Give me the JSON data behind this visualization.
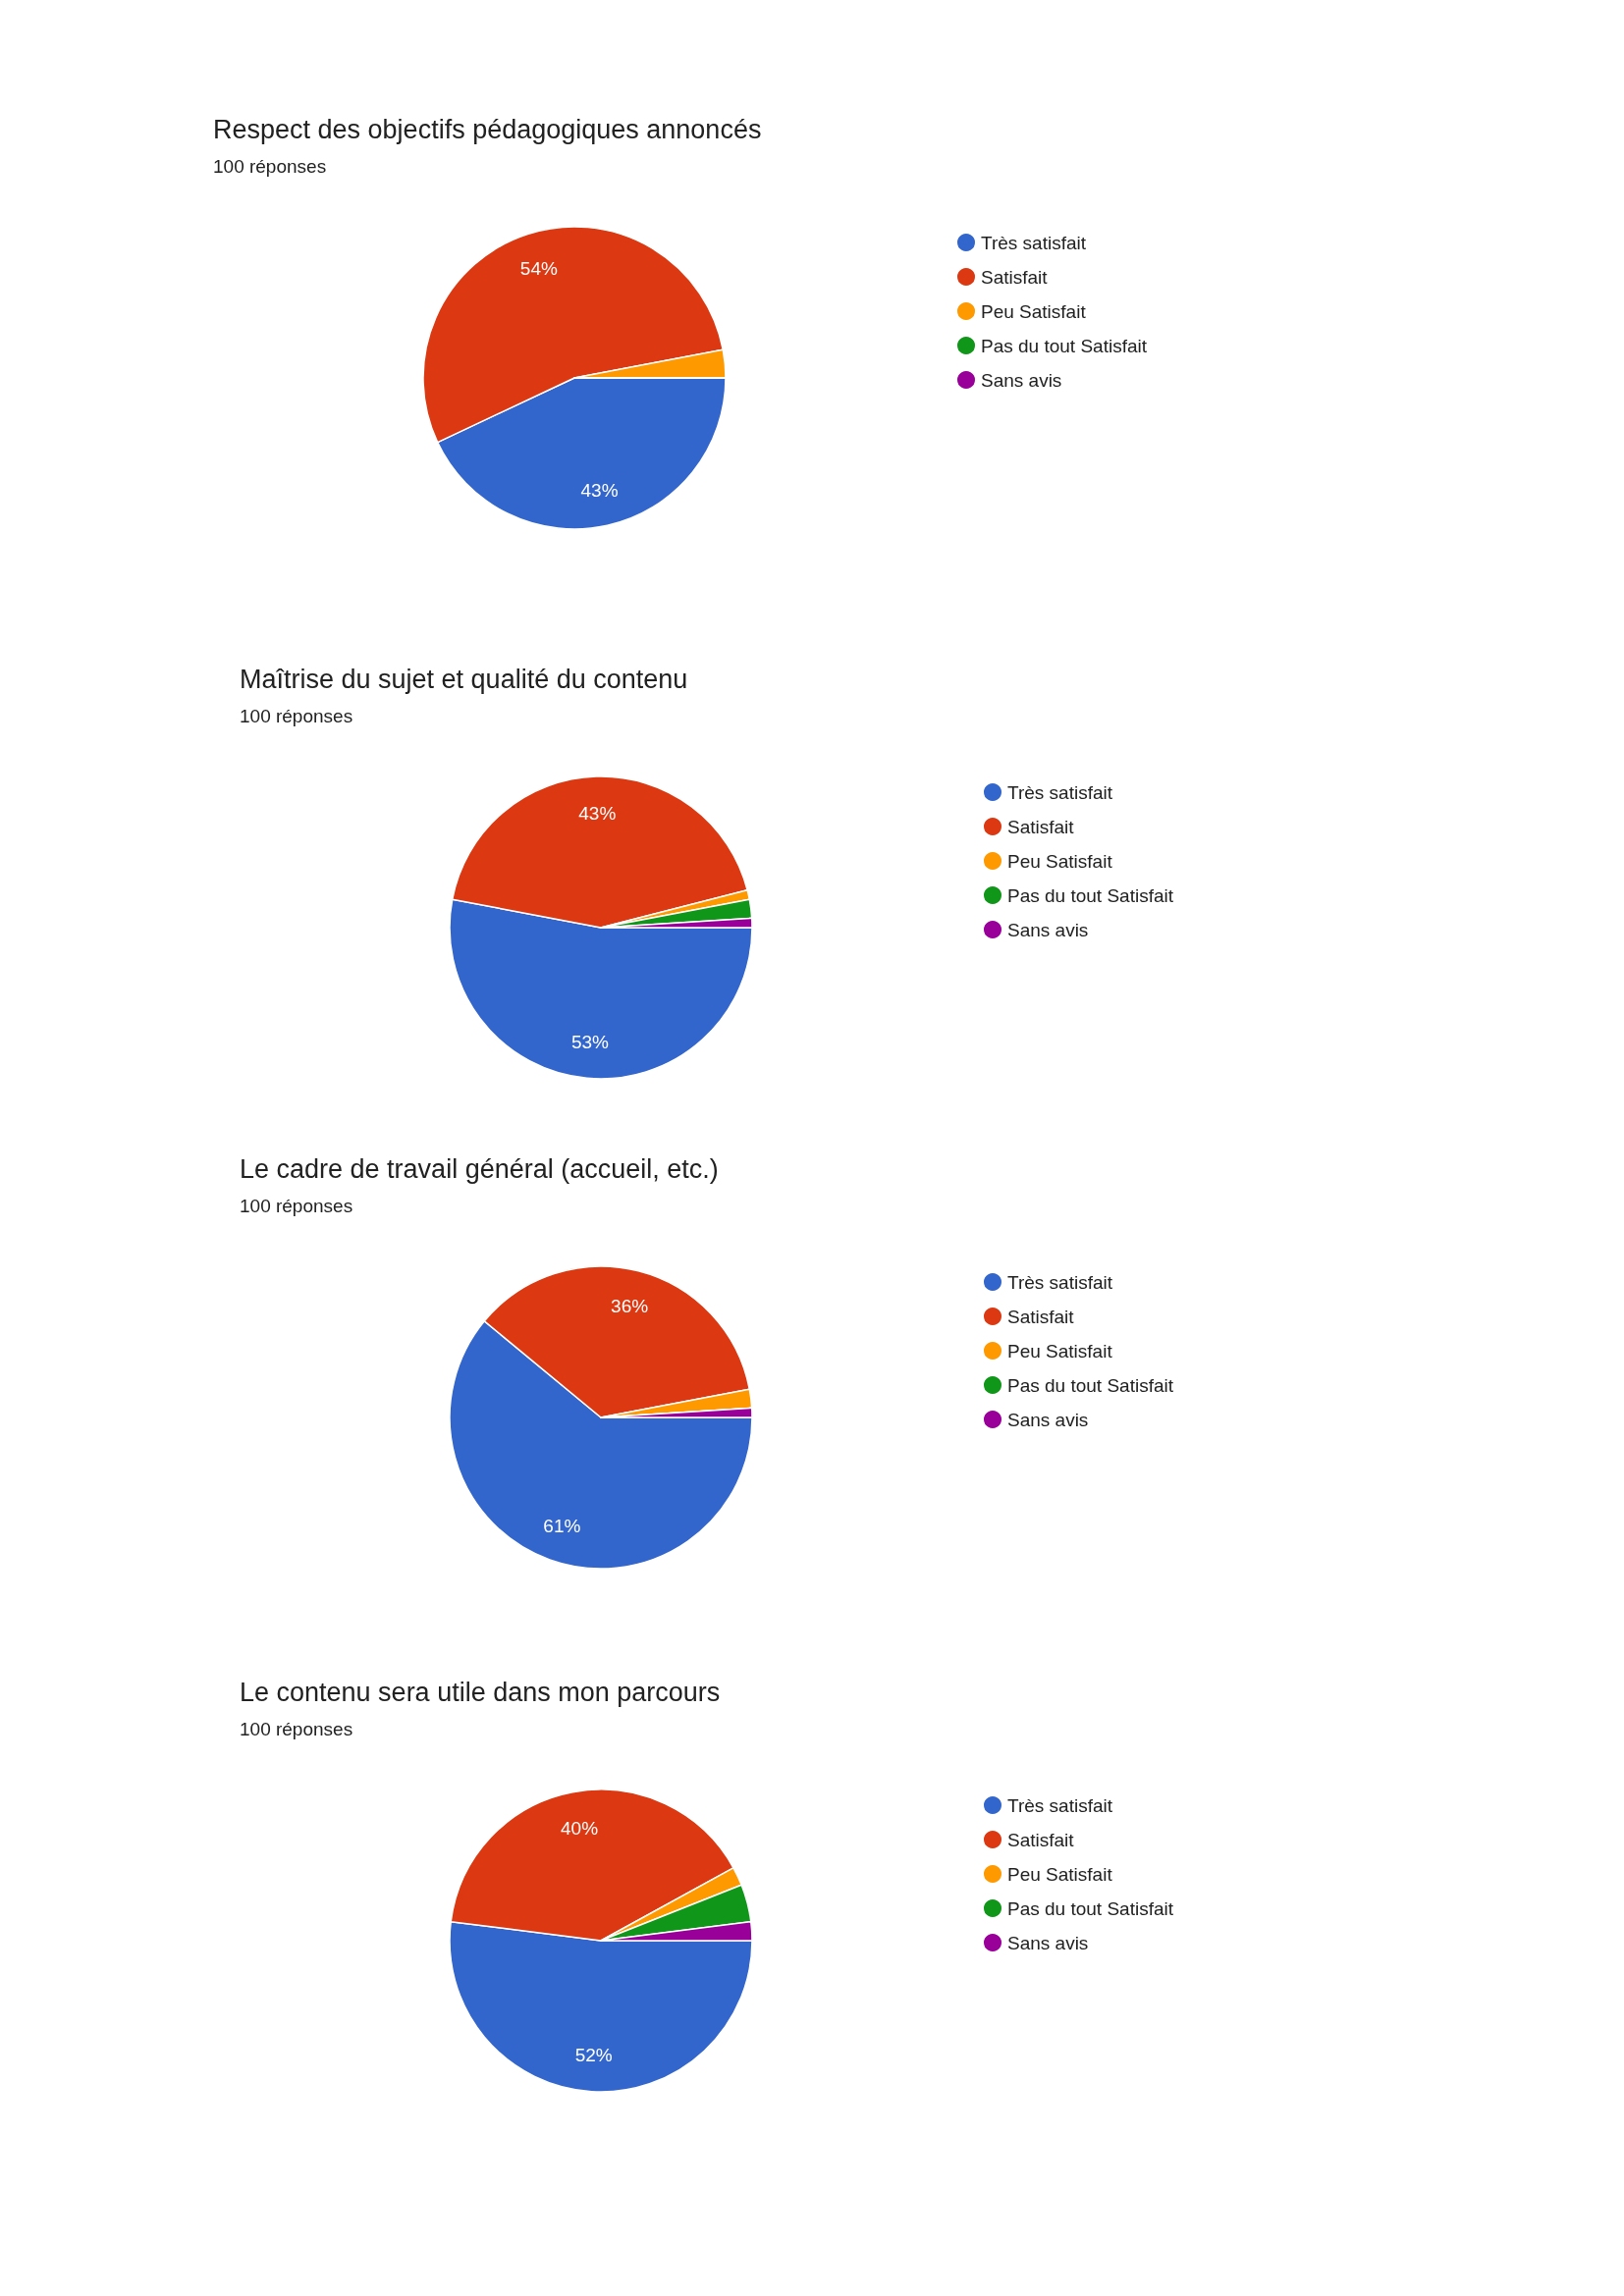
{
  "chart_data": [
    {
      "type": "pie",
      "title": "Respect des objectifs pédagogiques annoncés",
      "subtitle": "100 réponses",
      "categories": [
        "Très satisfait",
        "Satisfait",
        "Peu Satisfait",
        "Pas du tout Satisfait",
        "Sans avis"
      ],
      "values": [
        43,
        54,
        3,
        0,
        0
      ],
      "colors": [
        "#3366cc",
        "#dc3912",
        "#ff9900",
        "#109618",
        "#990099"
      ],
      "value_labels": [
        "43%",
        "54%",
        null,
        null,
        null
      ],
      "legend": "right"
    },
    {
      "type": "pie",
      "title": "Maîtrise du sujet et qualité du contenu",
      "subtitle": "100 réponses",
      "categories": [
        "Très satisfait",
        "Satisfait",
        "Peu Satisfait",
        "Pas du tout Satisfait",
        "Sans avis"
      ],
      "values": [
        53,
        43,
        1,
        2,
        1
      ],
      "colors": [
        "#3366cc",
        "#dc3912",
        "#ff9900",
        "#109618",
        "#990099"
      ],
      "value_labels": [
        "53%",
        "43%",
        null,
        null,
        null
      ],
      "legend": "right"
    },
    {
      "type": "pie",
      "title": "Le cadre de travail général (accueil, etc.)",
      "subtitle": "100 réponses",
      "categories": [
        "Très satisfait",
        "Satisfait",
        "Peu Satisfait",
        "Pas du tout Satisfait",
        "Sans avis"
      ],
      "values": [
        61,
        36,
        2,
        0,
        1
      ],
      "colors": [
        "#3366cc",
        "#dc3912",
        "#ff9900",
        "#109618",
        "#990099"
      ],
      "value_labels": [
        "61%",
        "36%",
        null,
        null,
        null
      ],
      "legend": "right"
    },
    {
      "type": "pie",
      "title": "Le contenu sera utile dans mon parcours",
      "subtitle": "100 réponses",
      "categories": [
        "Très satisfait",
        "Satisfait",
        "Peu Satisfait",
        "Pas du tout Satisfait",
        "Sans avis"
      ],
      "values": [
        52,
        40,
        2,
        4,
        2
      ],
      "colors": [
        "#3366cc",
        "#dc3912",
        "#ff9900",
        "#109618",
        "#990099"
      ],
      "value_labels": [
        "52%",
        "40%",
        null,
        null,
        null
      ],
      "legend": "right"
    }
  ]
}
